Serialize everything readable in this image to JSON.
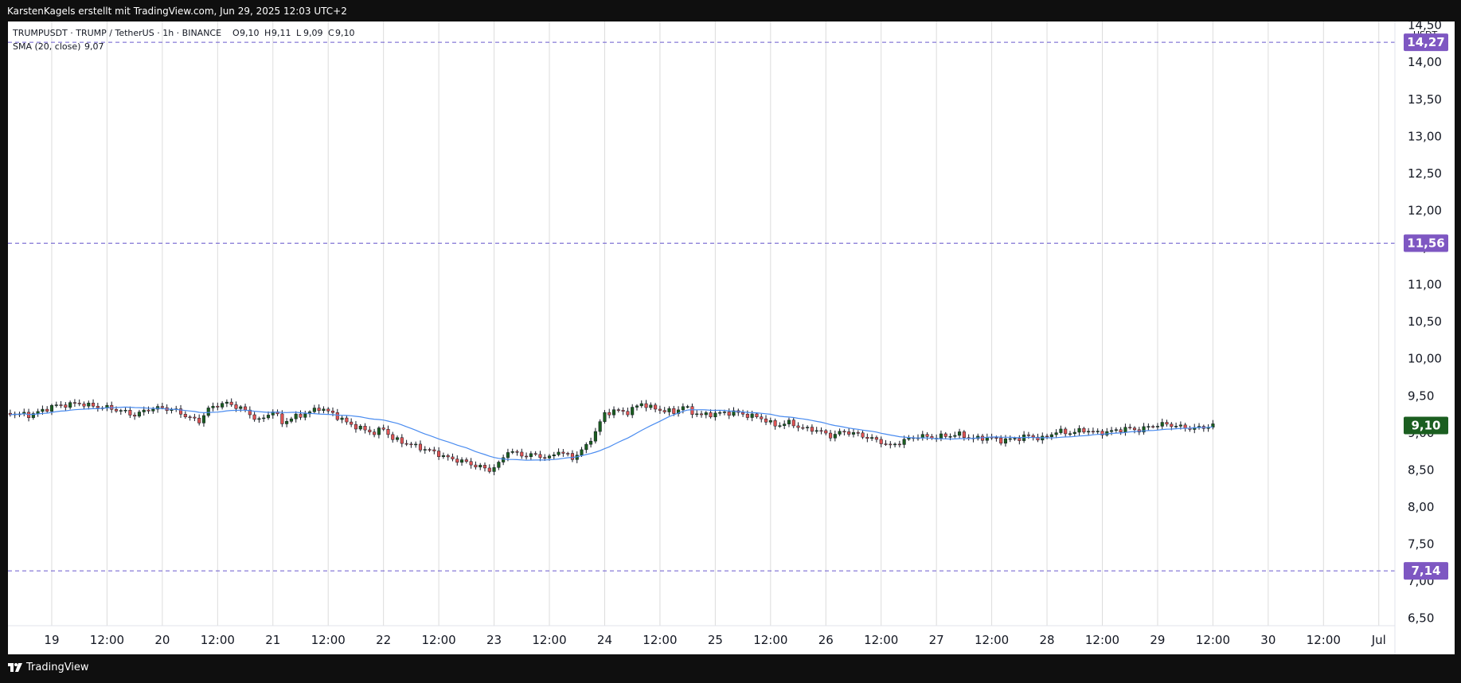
{
  "header": {
    "attribution": "KarstenKagels erstellt mit TradingView.com, Jun 29, 2025 12:03 UTC+2"
  },
  "footer": {
    "brand": "TradingView"
  },
  "legend": {
    "symbol_line": "TRUMPUSDT · TRUMP / TetherUS · 1h · BINANCE",
    "ohlc": [
      {
        "k": "O",
        "v": "9,10"
      },
      {
        "k": "H",
        "v": "9,11"
      },
      {
        "k": "L",
        "v": "9,09"
      },
      {
        "k": "C",
        "v": "9,10"
      }
    ],
    "indicator_label": "SMA (20, close)",
    "indicator_value": "9,07"
  },
  "colors": {
    "up": "#1b5e20",
    "down": "#e05555",
    "wick": "#131722",
    "sma": "#4a8cf0",
    "level_line": "#6a5acd",
    "level_badge": "#7e57c2",
    "last_price_badge": "#1b5e20",
    "grid": "#dcdcdc"
  },
  "chart_data": {
    "type": "candlestick",
    "symbol": "TRUMPUSDT",
    "interval": "1h",
    "exchange": "BINANCE",
    "currency": "USDT",
    "ylim": [
      6.4,
      14.55
    ],
    "y_ticks": [
      "6,50",
      "7,00",
      "7,50",
      "8,00",
      "8,50",
      "9,00",
      "9,50",
      "10,00",
      "10,50",
      "11,00",
      "11,50",
      "12,00",
      "12,50",
      "13,00",
      "13,50",
      "14,00",
      "14,50"
    ],
    "y_tick_values": [
      6.5,
      7.0,
      7.5,
      8.0,
      8.5,
      9.0,
      9.5,
      10.0,
      10.5,
      11.0,
      11.5,
      12.0,
      12.5,
      13.0,
      13.5,
      14.0,
      14.5
    ],
    "x_ticks": [
      {
        "label": "19",
        "t": 0
      },
      {
        "label": "12:00",
        "t": 12
      },
      {
        "label": "20",
        "t": 24
      },
      {
        "label": "12:00",
        "t": 36
      },
      {
        "label": "21",
        "t": 48
      },
      {
        "label": "12:00",
        "t": 60
      },
      {
        "label": "22",
        "t": 72
      },
      {
        "label": "12:00",
        "t": 84
      },
      {
        "label": "23",
        "t": 96
      },
      {
        "label": "12:00",
        "t": 108
      },
      {
        "label": "24",
        "t": 120
      },
      {
        "label": "12:00",
        "t": 132
      },
      {
        "label": "25",
        "t": 144
      },
      {
        "label": "12:00",
        "t": 156
      },
      {
        "label": "26",
        "t": 168
      },
      {
        "label": "12:00",
        "t": 180
      },
      {
        "label": "27",
        "t": 192
      },
      {
        "label": "12:00",
        "t": 204
      },
      {
        "label": "28",
        "t": 216
      },
      {
        "label": "12:00",
        "t": 228
      },
      {
        "label": "29",
        "t": 240
      },
      {
        "label": "12:00",
        "t": 252
      },
      {
        "label": "30",
        "t": 264
      },
      {
        "label": "12:00",
        "t": 276
      },
      {
        "label": "Jul",
        "t": 288
      }
    ],
    "x_range": [
      -9.5,
      291.5
    ],
    "horizontal_levels": [
      {
        "value": 14.27,
        "label": "14,27"
      },
      {
        "value": 11.56,
        "label": "11,56"
      },
      {
        "value": 7.14,
        "label": "7,14"
      }
    ],
    "last_price": {
      "value": 9.1,
      "label": "9,10"
    },
    "anchor_closes": [
      [
        -9,
        9.27
      ],
      [
        -5,
        9.24
      ],
      [
        -2,
        9.3
      ],
      [
        0,
        9.36
      ],
      [
        3,
        9.38
      ],
      [
        6,
        9.4
      ],
      [
        9,
        9.36
      ],
      [
        12,
        9.34
      ],
      [
        15,
        9.3
      ],
      [
        18,
        9.24
      ],
      [
        21,
        9.32
      ],
      [
        24,
        9.34
      ],
      [
        27,
        9.3
      ],
      [
        30,
        9.2
      ],
      [
        32,
        9.16
      ],
      [
        34,
        9.32
      ],
      [
        36,
        9.38
      ],
      [
        38,
        9.4
      ],
      [
        40,
        9.36
      ],
      [
        42,
        9.3
      ],
      [
        45,
        9.16
      ],
      [
        48,
        9.3
      ],
      [
        50,
        9.14
      ],
      [
        53,
        9.22
      ],
      [
        56,
        9.28
      ],
      [
        58,
        9.34
      ],
      [
        61,
        9.26
      ],
      [
        64,
        9.14
      ],
      [
        67,
        9.06
      ],
      [
        70,
        9.0
      ],
      [
        72,
        9.06
      ],
      [
        74,
        8.92
      ],
      [
        77,
        8.86
      ],
      [
        80,
        8.8
      ],
      [
        83,
        8.74
      ],
      [
        86,
        8.66
      ],
      [
        89,
        8.62
      ],
      [
        92,
        8.56
      ],
      [
        95,
        8.5
      ],
      [
        97,
        8.58
      ],
      [
        99,
        8.76
      ],
      [
        102,
        8.7
      ],
      [
        105,
        8.7
      ],
      [
        108,
        8.66
      ],
      [
        110,
        8.76
      ],
      [
        113,
        8.66
      ],
      [
        116,
        8.82
      ],
      [
        118,
        9.02
      ],
      [
        120,
        9.26
      ],
      [
        122,
        9.3
      ],
      [
        125,
        9.28
      ],
      [
        128,
        9.4
      ],
      [
        130,
        9.34
      ],
      [
        133,
        9.3
      ],
      [
        135,
        9.28
      ],
      [
        137,
        9.36
      ],
      [
        139,
        9.28
      ],
      [
        141,
        9.24
      ],
      [
        144,
        9.26
      ],
      [
        148,
        9.28
      ],
      [
        151,
        9.24
      ],
      [
        154,
        9.2
      ],
      [
        157,
        9.1
      ],
      [
        160,
        9.14
      ],
      [
        163,
        9.06
      ],
      [
        166,
        9.04
      ],
      [
        169,
        8.96
      ],
      [
        172,
        9.02
      ],
      [
        175,
        8.98
      ],
      [
        178,
        8.92
      ],
      [
        180,
        8.88
      ],
      [
        182,
        8.82
      ],
      [
        185,
        8.9
      ],
      [
        188,
        8.96
      ],
      [
        191,
        8.94
      ],
      [
        194,
        8.96
      ],
      [
        197,
        8.98
      ],
      [
        200,
        8.92
      ],
      [
        203,
        8.94
      ],
      [
        206,
        8.9
      ],
      [
        209,
        8.92
      ],
      [
        212,
        8.96
      ],
      [
        215,
        8.92
      ],
      [
        218,
        9.02
      ],
      [
        221,
        9.0
      ],
      [
        224,
        9.04
      ],
      [
        227,
        9.0
      ],
      [
        230,
        9.02
      ],
      [
        233,
        9.06
      ],
      [
        236,
        9.04
      ],
      [
        239,
        9.1
      ],
      [
        242,
        9.12
      ],
      [
        245,
        9.08
      ],
      [
        248,
        9.06
      ],
      [
        250,
        9.08
      ],
      [
        252,
        9.1
      ]
    ],
    "sma_period": 20
  }
}
